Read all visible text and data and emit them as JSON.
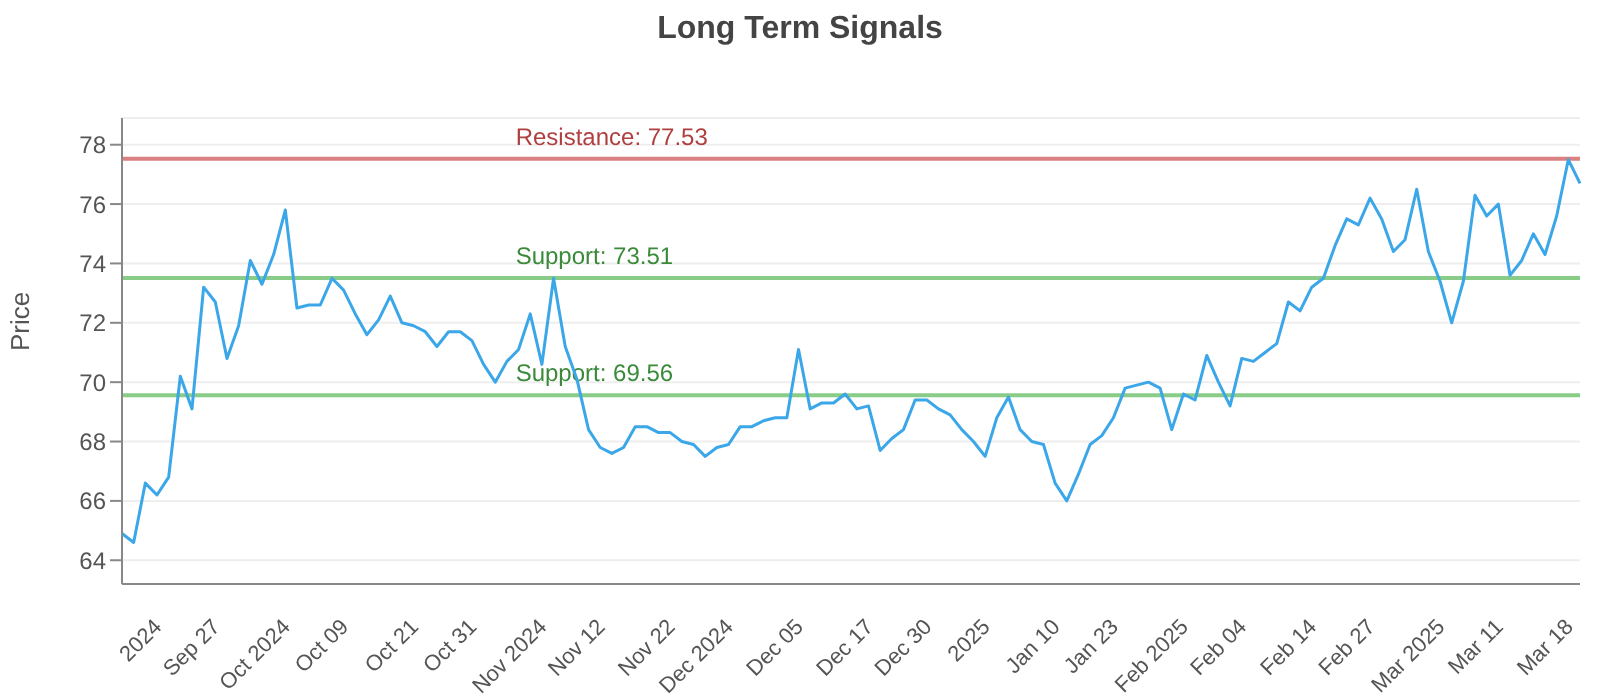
{
  "chart_data": {
    "type": "line",
    "title": "Long Term Signals",
    "ylabel": "Price",
    "categories": [
      null,
      null,
      null,
      "2024",
      null,
      null,
      null,
      null,
      "Sep 27",
      null,
      null,
      null,
      null,
      null,
      "Oct 2024",
      null,
      null,
      null,
      null,
      "Oct 09",
      null,
      null,
      null,
      null,
      null,
      "Oct 21",
      null,
      null,
      null,
      null,
      "Oct 31",
      null,
      null,
      null,
      null,
      null,
      "Nov 2024",
      null,
      null,
      null,
      null,
      "Nov 12",
      null,
      null,
      null,
      null,
      null,
      "Nov 22",
      null,
      null,
      null,
      null,
      "Dec 2024",
      null,
      null,
      null,
      null,
      null,
      "Dec 05",
      null,
      null,
      null,
      null,
      null,
      "Dec 17",
      null,
      null,
      null,
      null,
      "Dec 30",
      null,
      null,
      null,
      null,
      "2025",
      null,
      null,
      null,
      null,
      null,
      "Jan 10",
      null,
      null,
      null,
      null,
      "Jan 23",
      null,
      null,
      null,
      null,
      null,
      "Feb 2025",
      null,
      null,
      null,
      null,
      "Feb 04",
      null,
      null,
      null,
      null,
      null,
      "Feb 14",
      null,
      null,
      null,
      null,
      "Feb 27",
      null,
      null,
      null,
      null,
      null,
      "Mar 2025",
      null,
      null,
      null,
      null,
      "Mar 11",
      null,
      null,
      null,
      null,
      null,
      "Mar 18",
      null
    ],
    "series": [
      {
        "color": "#3ba7e8",
        "values": [
          64.9,
          64.6,
          66.6,
          66.2,
          66.8,
          70.2,
          69.1,
          73.2,
          72.7,
          70.8,
          71.9,
          74.1,
          73.3,
          74.3,
          75.8,
          72.5,
          72.6,
          72.6,
          73.5,
          73.1,
          72.3,
          71.6,
          72.1,
          72.9,
          72.0,
          71.9,
          71.7,
          71.2,
          71.7,
          71.7,
          71.4,
          70.6,
          70.0,
          70.7,
          71.1,
          72.3,
          70.6,
          73.5,
          71.2,
          70.1,
          68.4,
          67.8,
          67.6,
          67.8,
          68.5,
          68.5,
          68.3,
          68.3,
          68.0,
          67.9,
          67.5,
          67.8,
          67.9,
          68.5,
          68.5,
          68.7,
          68.8,
          68.8,
          71.1,
          69.1,
          69.3,
          69.3,
          69.6,
          69.1,
          69.2,
          67.7,
          68.1,
          68.4,
          69.4,
          69.4,
          69.1,
          68.9,
          68.4,
          68.0,
          67.5,
          68.8,
          69.5,
          68.4,
          68.0,
          67.9,
          66.6,
          66.0,
          66.9,
          67.9,
          68.2,
          68.8,
          69.8,
          69.9,
          70.0,
          69.8,
          68.4,
          69.6,
          69.4,
          70.9,
          70.0,
          69.2,
          70.8,
          70.7,
          71.0,
          71.3,
          72.7,
          72.4,
          73.2,
          73.5,
          74.6,
          75.5,
          75.3,
          76.2,
          75.5,
          74.4,
          74.8,
          76.5,
          74.4,
          73.4,
          72.0,
          73.4,
          76.3,
          75.6,
          76.0,
          73.6,
          74.1,
          75.0,
          74.3,
          75.6,
          77.5,
          76.7
        ]
      }
    ],
    "ylim": [
      63.2,
      78.9
    ],
    "yticks": [
      64,
      66,
      68,
      70,
      72,
      74,
      76,
      78
    ],
    "grid": "y",
    "legend": false,
    "marker": "none",
    "line_style": "solid",
    "ref_lines": [
      {
        "axis": "y",
        "value": 77.53,
        "label": "Resistance: 77.53",
        "color": "#d98080"
      },
      {
        "axis": "y",
        "value": 73.51,
        "label": "Support: 73.51",
        "color": "#88cc88"
      },
      {
        "axis": "y",
        "value": 69.56,
        "label": "Support: 69.56",
        "color": "#88cc88"
      }
    ]
  }
}
